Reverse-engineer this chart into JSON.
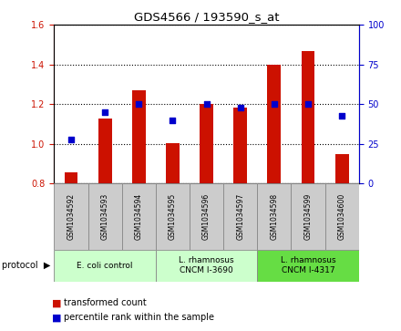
{
  "title": "GDS4566 / 193590_s_at",
  "samples": [
    "GSM1034592",
    "GSM1034593",
    "GSM1034594",
    "GSM1034595",
    "GSM1034596",
    "GSM1034597",
    "GSM1034598",
    "GSM1034599",
    "GSM1034600"
  ],
  "transformed_count": [
    0.855,
    1.13,
    1.27,
    1.005,
    1.2,
    1.185,
    1.4,
    1.47,
    0.95
  ],
  "percentile_rank": [
    28,
    45,
    50,
    40,
    50,
    48,
    50,
    50,
    43
  ],
  "ylim_left": [
    0.8,
    1.6
  ],
  "ylim_right": [
    0,
    100
  ],
  "yticks_left": [
    0.8,
    1.0,
    1.2,
    1.4,
    1.6
  ],
  "yticks_right": [
    0,
    25,
    50,
    75,
    100
  ],
  "bar_color": "#cc1100",
  "dot_color": "#0000cc",
  "bar_width": 0.4,
  "left_label_color": "#cc1100",
  "right_label_color": "#0000cc",
  "protocol_colors": [
    "#ccffcc",
    "#ccffcc",
    "#66dd44"
  ],
  "protocol_labels": [
    "E. coli control",
    "L. rhamnosus\nCNCM I-3690",
    "L. rhamnosus\nCNCM I-4317"
  ],
  "protocol_ranges": [
    [
      0,
      3
    ],
    [
      3,
      6
    ],
    [
      6,
      9
    ]
  ],
  "legend_labels": [
    "transformed count",
    "percentile rank within the sample"
  ],
  "legend_colors": [
    "#cc1100",
    "#0000cc"
  ],
  "sample_box_color": "#cccccc",
  "title_fontsize": 9.5,
  "tick_fontsize": 7,
  "sample_fontsize": 5.5,
  "proto_fontsize": 6.5,
  "legend_fontsize": 7
}
